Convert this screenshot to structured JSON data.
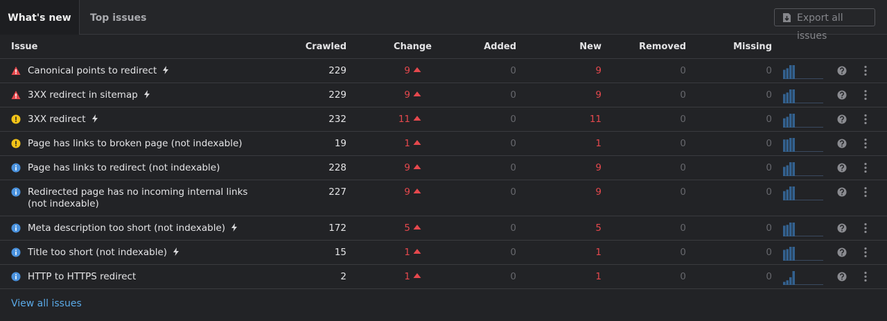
{
  "tabs": [
    "What's new",
    "Top issues"
  ],
  "export_button": "Export all issues",
  "table": {
    "columns": [
      "Issue",
      "Crawled",
      "Change",
      "Added",
      "New",
      "Removed",
      "Missing"
    ],
    "rows": [
      {
        "issue": "Canonical points to redirect",
        "severity": "error",
        "quick_fix": true,
        "crawled": 229,
        "change": 9,
        "added": 0,
        "new": 9,
        "removed": 0,
        "missing": 0,
        "trend": [
          12,
          14,
          18,
          18
        ]
      },
      {
        "issue": "3XX redirect in sitemap",
        "severity": "error",
        "quick_fix": true,
        "crawled": 229,
        "change": 9,
        "added": 0,
        "new": 9,
        "removed": 0,
        "missing": 0,
        "trend": [
          12,
          14,
          18,
          18
        ]
      },
      {
        "issue": "3XX redirect",
        "severity": "warning",
        "quick_fix": true,
        "crawled": 232,
        "change": 11,
        "added": 0,
        "new": 11,
        "removed": 0,
        "missing": 0,
        "trend": [
          12,
          14,
          18,
          18
        ]
      },
      {
        "issue": "Page has links to broken page (not indexable)",
        "severity": "warning",
        "quick_fix": false,
        "crawled": 19,
        "change": 1,
        "added": 0,
        "new": 1,
        "removed": 0,
        "missing": 0,
        "trend": [
          16,
          16,
          18,
          18
        ]
      },
      {
        "issue": "Page has links to redirect (not indexable)",
        "severity": "notice",
        "quick_fix": false,
        "crawled": 228,
        "change": 9,
        "added": 0,
        "new": 9,
        "removed": 0,
        "missing": 0,
        "trend": [
          12,
          14,
          18,
          18
        ]
      },
      {
        "issue": "Redirected page has no incoming internal links (not indexable)",
        "severity": "notice",
        "quick_fix": false,
        "crawled": 227,
        "change": 9,
        "added": 0,
        "new": 9,
        "removed": 0,
        "missing": 0,
        "trend": [
          12,
          14,
          18,
          18
        ]
      },
      {
        "issue": "Meta description too short (not indexable)",
        "severity": "notice",
        "quick_fix": true,
        "crawled": 172,
        "change": 5,
        "added": 0,
        "new": 5,
        "removed": 0,
        "missing": 0,
        "trend": [
          14,
          15,
          18,
          18
        ]
      },
      {
        "issue": "Title too short (not indexable)",
        "severity": "notice",
        "quick_fix": true,
        "crawled": 15,
        "change": 1,
        "added": 0,
        "new": 1,
        "removed": 0,
        "missing": 0,
        "trend": [
          14,
          15,
          18,
          18
        ]
      },
      {
        "issue": "HTTP to HTTPS redirect",
        "severity": "notice",
        "quick_fix": false,
        "crawled": 2,
        "change": 1,
        "added": 0,
        "new": 1,
        "removed": 0,
        "missing": 0,
        "trend": [
          4,
          6,
          10,
          18
        ]
      }
    ]
  },
  "footer_link": "View all issues"
}
